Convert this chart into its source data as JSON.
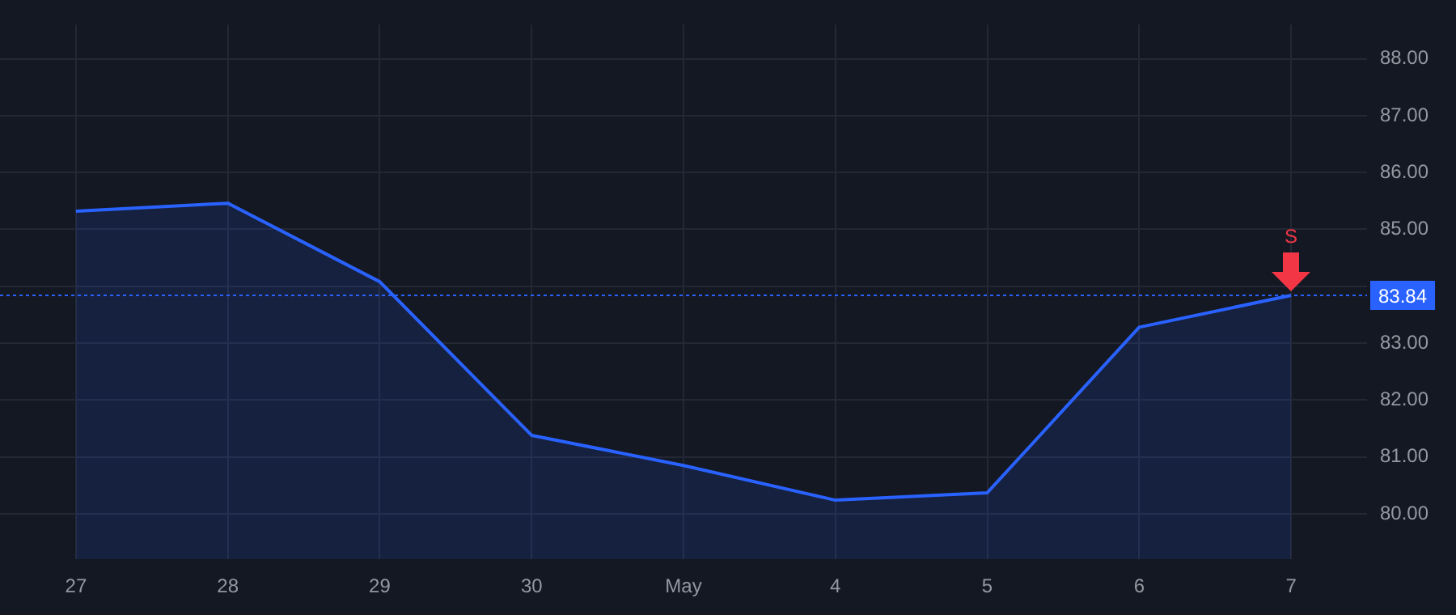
{
  "chart_data": {
    "type": "area",
    "categories": [
      "27",
      "28",
      "29",
      "30",
      "May",
      "4",
      "5",
      "6",
      "7"
    ],
    "series": [
      {
        "color": "#2962ff",
        "values": [
          85.32,
          85.46,
          84.08,
          81.38,
          80.85,
          80.24,
          80.37,
          83.28,
          83.84
        ]
      }
    ],
    "ylim": [
      79.2,
      88.6
    ],
    "yticks": [
      {
        "value": 80,
        "label": "80.00"
      },
      {
        "value": 81,
        "label": "81.00"
      },
      {
        "value": 82,
        "label": "82.00"
      },
      {
        "value": 83,
        "label": "83.00"
      },
      {
        "value": 84,
        "label": null
      },
      {
        "value": 85,
        "label": "85.00"
      },
      {
        "value": 86,
        "label": "86.00"
      },
      {
        "value": 87,
        "label": "87.00"
      },
      {
        "value": 88,
        "label": "88.00"
      }
    ],
    "ref_lines": [
      {
        "axis": "y",
        "value": 83.84,
        "label": "83.84",
        "color": "#2962ff",
        "line_style": "dotted"
      }
    ],
    "annotations": [
      {
        "text": "S",
        "x": "7",
        "y": 83.84
      }
    ],
    "grid": true,
    "legend": false,
    "marker": "none",
    "line_style": "solid"
  }
}
